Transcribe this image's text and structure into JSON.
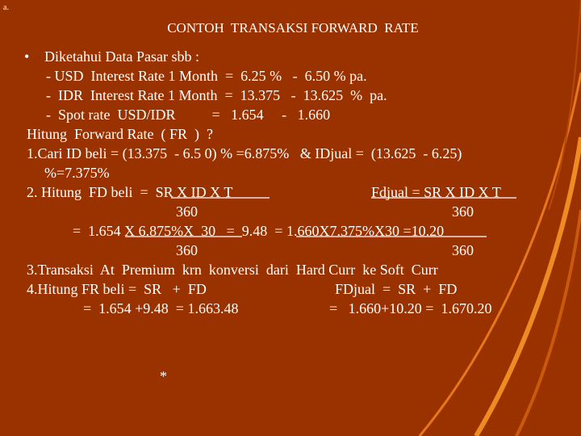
{
  "corner_label": "a.",
  "title": "CONTOH  TRANSAKSI FORWARD  RATE",
  "lines": [
    "•",
    "Diketahui Data Pasar sbb :",
    "- USD  Interest Rate 1 Month  =  6.25 %   -  6.50 % pa.",
    "-  IDR  Interest Rate 1 Month  =  13.375   -  13.625  %  pa.",
    "-  Spot rate  USD/IDR          =   1.654     -   1.660",
    "Hitung  Forward Rate  ( FR  )  ?",
    "1.Cari ID beli = (13.375  - 6.5 0) % =6.875%   & IDjual =  (13.625  - 6.25)",
    "%=7.375%",
    "2. Hitung  FD beli  =  SR X ID X T",
    "Fdjual = SR X ID X T",
    "360",
    "360",
    "=  1.654 X 6.875%X  30   =  9.48  = 1.660X7.375%X30 =10.20",
    "360",
    "360",
    "3.Transaksi  At  Premium  krn  konversi  dari  Hard Curr  ke Soft  Curr",
    "4.Hitung FR beli =  SR   +  FD",
    "FDjual  =  SR  +  FD",
    "=  1.654 +9.48  = 1.663.48",
    "=   1.660+10.20 =  1.670.20",
    "*"
  ]
}
